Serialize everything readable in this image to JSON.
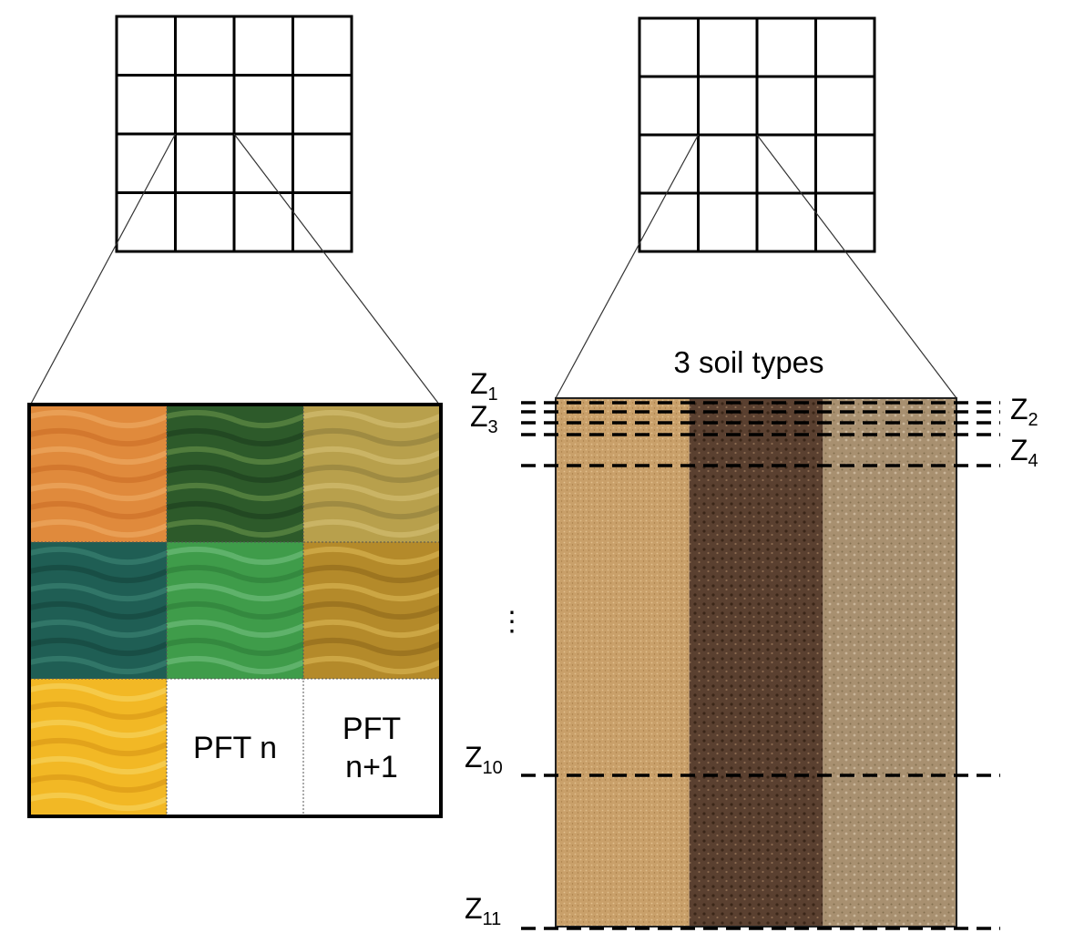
{
  "left_panel": {
    "pft_cells": [
      {
        "kind": "image",
        "icon": "desert-dunes-photo",
        "colors": [
          "#e08a3c",
          "#c96a22",
          "#f1b06a"
        ]
      },
      {
        "kind": "image",
        "icon": "tropical-forest-photo",
        "colors": [
          "#2d5a2a",
          "#1a3a1c",
          "#6f9a4c"
        ]
      },
      {
        "kind": "image",
        "icon": "autumn-forest-photo",
        "colors": [
          "#b8a04c",
          "#8a7a3a",
          "#d9c47a"
        ]
      },
      {
        "kind": "image",
        "icon": "conifer-forest-photo",
        "colors": [
          "#1f5e54",
          "#124238",
          "#3f8a78"
        ]
      },
      {
        "kind": "image",
        "icon": "grass-field-photo",
        "colors": [
          "#3f9c4a",
          "#2b7a36",
          "#7ac486"
        ]
      },
      {
        "kind": "image",
        "icon": "wheat-photo",
        "colors": [
          "#b48a2a",
          "#8a6418",
          "#e0bd5a"
        ]
      },
      {
        "kind": "image",
        "icon": "corn-photo",
        "colors": [
          "#f2b825",
          "#d69214",
          "#f7d96a"
        ]
      },
      {
        "kind": "text",
        "lines": [
          "PFT n"
        ]
      },
      {
        "kind": "text",
        "lines": [
          "PFT",
          "n+1"
        ]
      }
    ]
  },
  "right_panel": {
    "title": "3 soil types",
    "soil_columns": [
      {
        "icon": "sand-soil-photo",
        "base": "#c9a06a",
        "speck": "#e2c08e"
      },
      {
        "icon": "dark-loam-soil-photo",
        "base": "#5a4030",
        "speck": "#8a6a50"
      },
      {
        "icon": "clay-soil-photo",
        "base": "#a89070",
        "speck": "#c8b498"
      }
    ],
    "depth_labels": {
      "z1": {
        "base": "Z",
        "sub": "1"
      },
      "z2": {
        "base": "Z",
        "sub": "2"
      },
      "z3": {
        "base": "Z",
        "sub": "3"
      },
      "z4": {
        "base": "Z",
        "sub": "4"
      },
      "z10": {
        "base": "Z",
        "sub": "10"
      },
      "z11": {
        "base": "Z",
        "sub": "11"
      },
      "ellipsis": "⋮"
    }
  }
}
